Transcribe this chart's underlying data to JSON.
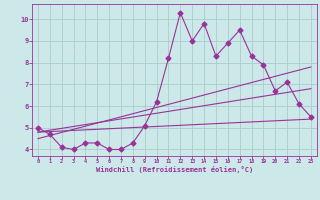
{
  "xlabel": "Windchill (Refroidissement éolien,°C)",
  "background_color": "#cce8e8",
  "grid_color": "#aacccc",
  "line_color": "#993399",
  "xlim": [
    -0.5,
    23.5
  ],
  "ylim": [
    3.7,
    10.7
  ],
  "xticks": [
    0,
    1,
    2,
    3,
    4,
    5,
    6,
    7,
    8,
    9,
    10,
    11,
    12,
    13,
    14,
    15,
    16,
    17,
    18,
    19,
    20,
    21,
    22,
    23
  ],
  "yticks": [
    4,
    5,
    6,
    7,
    8,
    9,
    10
  ],
  "hours": [
    0,
    1,
    2,
    3,
    4,
    5,
    6,
    7,
    8,
    9,
    10,
    11,
    12,
    13,
    14,
    15,
    16,
    17,
    18,
    19,
    20,
    21,
    22,
    23
  ],
  "line1": [
    5.0,
    4.7,
    4.1,
    4.0,
    4.3,
    4.3,
    4.0,
    4.0,
    4.3,
    5.1,
    6.2,
    8.2,
    10.3,
    9.0,
    9.8,
    8.3,
    8.9,
    9.5,
    8.3,
    7.9,
    6.7,
    7.1,
    6.1,
    5.5
  ],
  "line2_x": [
    0,
    23
  ],
  "line2_y": [
    4.8,
    5.4
  ],
  "line3_x": [
    0,
    23
  ],
  "line3_y": [
    4.5,
    7.8
  ],
  "line4_x": [
    0,
    23
  ],
  "line4_y": [
    4.8,
    6.8
  ]
}
